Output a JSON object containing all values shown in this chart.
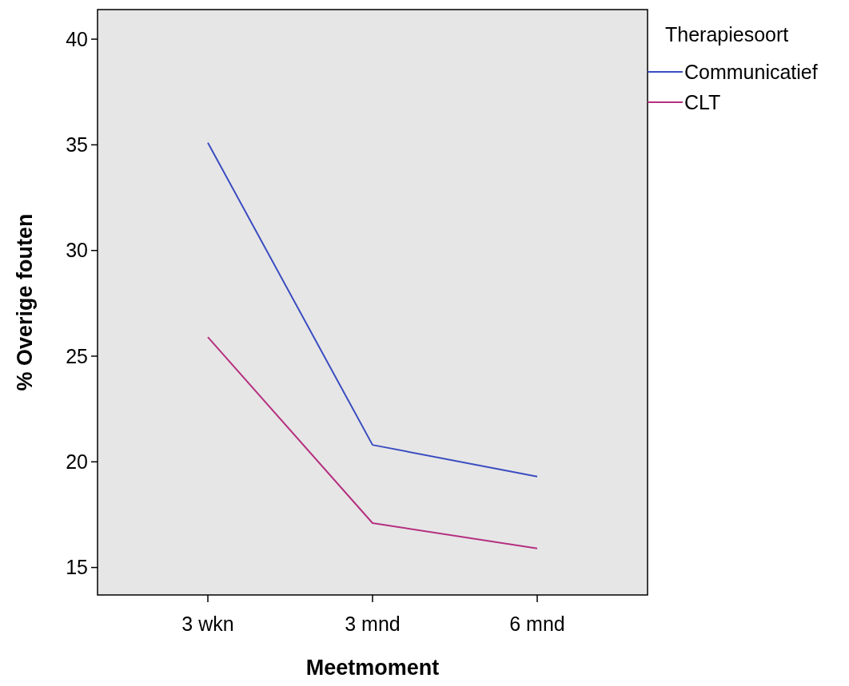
{
  "chart_data": {
    "type": "line",
    "xlabel": "Meetmoment",
    "ylabel": "% Overige fouten",
    "legend_title": "Therapiesoort",
    "categories": [
      "3 wkn",
      "3 mnd",
      "6 mnd"
    ],
    "series": [
      {
        "name": "Communicatief",
        "color": "#3b4cc0",
        "values": [
          35.1,
          20.8,
          19.3
        ]
      },
      {
        "name": "CLT",
        "color": "#b5307f",
        "values": [
          25.9,
          17.1,
          15.9
        ]
      }
    ],
    "ylim": [
      13.7,
      41.4
    ],
    "yticks": [
      15,
      20,
      25,
      30,
      35,
      40
    ],
    "grid": false,
    "legend": "top right",
    "marker": "none",
    "line_style": "solid"
  }
}
